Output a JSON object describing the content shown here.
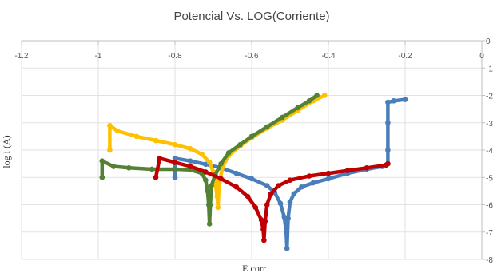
{
  "chart_data": {
    "type": "scatter",
    "title": "Potencial Vs. LOG(Corriente)",
    "xlabel": "E corr",
    "ylabel": "log i (A)",
    "xlim": [
      -1.2,
      0
    ],
    "ylim": [
      -8,
      0
    ],
    "x_ticks": [
      -1.2,
      -1,
      -0.8,
      -0.6,
      -0.4,
      -0.2,
      0
    ],
    "x_tick_labels": [
      "-1.2",
      "-1",
      "-0.8",
      "-0.6",
      "-0.4",
      "-0.2",
      "0"
    ],
    "y_ticks": [
      0,
      -1,
      -2,
      -3,
      -4,
      -5,
      -6,
      -7,
      -8
    ],
    "y_tick_labels": [
      "0",
      "-1",
      "-2",
      "-3",
      "-4",
      "-5",
      "-6",
      "-7",
      "-8"
    ],
    "x_axis_position": "top",
    "y_axis_position": "right",
    "grid": true,
    "series": [
      {
        "color": "#4a7ebb",
        "points": [
          [
            -0.8,
            -5.0
          ],
          [
            -0.8,
            -4.3
          ],
          [
            -0.76,
            -4.4
          ],
          [
            -0.72,
            -4.52
          ],
          [
            -0.68,
            -4.65
          ],
          [
            -0.64,
            -4.85
          ],
          [
            -0.6,
            -5.05
          ],
          [
            -0.56,
            -5.3
          ],
          [
            -0.54,
            -5.55
          ],
          [
            -0.525,
            -5.95
          ],
          [
            -0.515,
            -6.45
          ],
          [
            -0.51,
            -7.0
          ],
          [
            -0.508,
            -7.6
          ],
          [
            -0.505,
            -6.5
          ],
          [
            -0.5,
            -5.9
          ],
          [
            -0.49,
            -5.6
          ],
          [
            -0.47,
            -5.35
          ],
          [
            -0.44,
            -5.2
          ],
          [
            -0.4,
            -5.05
          ],
          [
            -0.35,
            -4.85
          ],
          [
            -0.3,
            -4.7
          ],
          [
            -0.26,
            -4.6
          ],
          [
            -0.245,
            -4.5
          ],
          [
            -0.245,
            -4.0
          ],
          [
            -0.245,
            -3.0
          ],
          [
            -0.245,
            -2.25
          ],
          [
            -0.23,
            -2.2
          ],
          [
            -0.2,
            -2.15
          ]
        ]
      },
      {
        "color": "#ffc000",
        "points": [
          [
            -0.97,
            -4.0
          ],
          [
            -0.97,
            -3.1
          ],
          [
            -0.95,
            -3.3
          ],
          [
            -0.9,
            -3.5
          ],
          [
            -0.85,
            -3.65
          ],
          [
            -0.8,
            -3.8
          ],
          [
            -0.76,
            -3.95
          ],
          [
            -0.73,
            -4.15
          ],
          [
            -0.71,
            -4.45
          ],
          [
            -0.7,
            -4.8
          ],
          [
            -0.695,
            -5.2
          ],
          [
            -0.69,
            -5.7
          ],
          [
            -0.688,
            -6.1
          ],
          [
            -0.685,
            -5.2
          ],
          [
            -0.675,
            -4.6
          ],
          [
            -0.66,
            -4.2
          ],
          [
            -0.63,
            -3.85
          ],
          [
            -0.6,
            -3.55
          ],
          [
            -0.56,
            -3.2
          ],
          [
            -0.52,
            -2.9
          ],
          [
            -0.48,
            -2.55
          ],
          [
            -0.44,
            -2.2
          ],
          [
            -0.41,
            -2.0
          ]
        ]
      },
      {
        "color": "#548235",
        "points": [
          [
            -0.99,
            -5.0
          ],
          [
            -0.99,
            -4.4
          ],
          [
            -0.96,
            -4.6
          ],
          [
            -0.92,
            -4.65
          ],
          [
            -0.86,
            -4.7
          ],
          [
            -0.8,
            -4.7
          ],
          [
            -0.76,
            -4.72
          ],
          [
            -0.73,
            -4.85
          ],
          [
            -0.72,
            -5.1
          ],
          [
            -0.715,
            -5.5
          ],
          [
            -0.712,
            -6.0
          ],
          [
            -0.71,
            -6.7
          ],
          [
            -0.708,
            -6.0
          ],
          [
            -0.705,
            -5.3
          ],
          [
            -0.695,
            -4.9
          ],
          [
            -0.68,
            -4.5
          ],
          [
            -0.66,
            -4.1
          ],
          [
            -0.63,
            -3.8
          ],
          [
            -0.6,
            -3.5
          ],
          [
            -0.56,
            -3.15
          ],
          [
            -0.52,
            -2.8
          ],
          [
            -0.48,
            -2.45
          ],
          [
            -0.45,
            -2.2
          ],
          [
            -0.43,
            -2.0
          ]
        ]
      },
      {
        "color": "#c00000",
        "points": [
          [
            -0.85,
            -5.0
          ],
          [
            -0.84,
            -4.3
          ],
          [
            -0.8,
            -4.45
          ],
          [
            -0.76,
            -4.6
          ],
          [
            -0.72,
            -4.8
          ],
          [
            -0.68,
            -5.05
          ],
          [
            -0.64,
            -5.35
          ],
          [
            -0.61,
            -5.7
          ],
          [
            -0.59,
            -6.1
          ],
          [
            -0.575,
            -6.55
          ],
          [
            -0.57,
            -6.9
          ],
          [
            -0.568,
            -7.3
          ],
          [
            -0.565,
            -6.6
          ],
          [
            -0.56,
            -6.0
          ],
          [
            -0.55,
            -5.6
          ],
          [
            -0.53,
            -5.3
          ],
          [
            -0.5,
            -5.1
          ],
          [
            -0.45,
            -4.95
          ],
          [
            -0.4,
            -4.85
          ],
          [
            -0.35,
            -4.75
          ],
          [
            -0.3,
            -4.65
          ],
          [
            -0.25,
            -4.55
          ],
          [
            -0.245,
            -4.5
          ]
        ]
      }
    ]
  }
}
